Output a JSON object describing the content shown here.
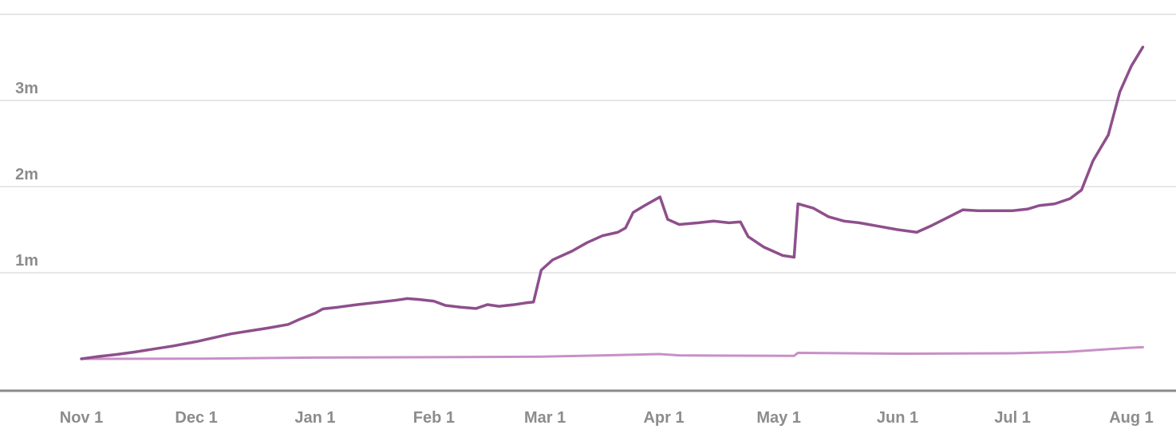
{
  "chart_data": {
    "type": "line",
    "title": "",
    "xlabel": "",
    "ylabel": "",
    "x_ticks": [
      "Nov 1",
      "Dec 1",
      "Jan 1",
      "Feb 1",
      "Mar 1",
      "Apr 1",
      "May 1",
      "Jun 1",
      "Jul 1",
      "Aug 1"
    ],
    "x_tick_values": [
      "2023-11-01",
      "2023-12-01",
      "2024-01-01",
      "2024-02-01",
      "2024-03-01",
      "2024-04-01",
      "2024-05-01",
      "2024-06-01",
      "2024-07-01",
      "2024-08-01"
    ],
    "y_ticks": [
      {
        "value": 1000000,
        "label": "1m"
      },
      {
        "value": 2000000,
        "label": "2m"
      },
      {
        "value": 3000000,
        "label": "3m"
      }
    ],
    "xlim": [
      "2023-11-01",
      "2024-08-01"
    ],
    "ylim": [
      0,
      4000000
    ],
    "grid": true,
    "legend": "none",
    "series": [
      {
        "color": "#8e4f8c",
        "stroke_role": "primary",
        "points": [
          [
            "2023-11-01",
            0
          ],
          [
            "2023-11-05",
            25000
          ],
          [
            "2023-11-10",
            50000
          ],
          [
            "2023-11-15",
            80000
          ],
          [
            "2023-11-20",
            115000
          ],
          [
            "2023-11-25",
            150000
          ],
          [
            "2023-12-01",
            200000
          ],
          [
            "2023-12-05",
            240000
          ],
          [
            "2023-12-10",
            290000
          ],
          [
            "2023-12-15",
            325000
          ],
          [
            "2023-12-20",
            360000
          ],
          [
            "2023-12-25",
            400000
          ],
          [
            "2023-12-28",
            460000
          ],
          [
            "2024-01-01",
            530000
          ],
          [
            "2024-01-03",
            580000
          ],
          [
            "2024-01-07",
            600000
          ],
          [
            "2024-01-12",
            630000
          ],
          [
            "2024-01-18",
            660000
          ],
          [
            "2024-01-22",
            680000
          ],
          [
            "2024-01-25",
            700000
          ],
          [
            "2024-01-28",
            690000
          ],
          [
            "2024-02-01",
            670000
          ],
          [
            "2024-02-04",
            620000
          ],
          [
            "2024-02-08",
            600000
          ],
          [
            "2024-02-12",
            585000
          ],
          [
            "2024-02-15",
            630000
          ],
          [
            "2024-02-18",
            610000
          ],
          [
            "2024-02-22",
            630000
          ],
          [
            "2024-02-25",
            650000
          ],
          [
            "2024-02-27",
            660000
          ],
          [
            "2024-02-29",
            1030000
          ],
          [
            "2024-03-03",
            1150000
          ],
          [
            "2024-03-08",
            1250000
          ],
          [
            "2024-03-12",
            1350000
          ],
          [
            "2024-03-16",
            1430000
          ],
          [
            "2024-03-20",
            1470000
          ],
          [
            "2024-03-22",
            1520000
          ],
          [
            "2024-03-24",
            1700000
          ],
          [
            "2024-03-27",
            1780000
          ],
          [
            "2024-03-31",
            1880000
          ],
          [
            "2024-04-02",
            1620000
          ],
          [
            "2024-04-05",
            1560000
          ],
          [
            "2024-04-10",
            1580000
          ],
          [
            "2024-04-14",
            1600000
          ],
          [
            "2024-04-18",
            1580000
          ],
          [
            "2024-04-21",
            1590000
          ],
          [
            "2024-04-23",
            1420000
          ],
          [
            "2024-04-27",
            1300000
          ],
          [
            "2024-05-02",
            1200000
          ],
          [
            "2024-05-05",
            1180000
          ],
          [
            "2024-05-06",
            1800000
          ],
          [
            "2024-05-10",
            1750000
          ],
          [
            "2024-05-14",
            1650000
          ],
          [
            "2024-05-18",
            1600000
          ],
          [
            "2024-05-22",
            1580000
          ],
          [
            "2024-05-27",
            1540000
          ],
          [
            "2024-06-01",
            1500000
          ],
          [
            "2024-06-06",
            1470000
          ],
          [
            "2024-06-10",
            1550000
          ],
          [
            "2024-06-14",
            1640000
          ],
          [
            "2024-06-18",
            1730000
          ],
          [
            "2024-06-22",
            1720000
          ],
          [
            "2024-06-26",
            1720000
          ],
          [
            "2024-07-01",
            1720000
          ],
          [
            "2024-07-05",
            1740000
          ],
          [
            "2024-07-08",
            1780000
          ],
          [
            "2024-07-12",
            1800000
          ],
          [
            "2024-07-16",
            1860000
          ],
          [
            "2024-07-19",
            1960000
          ],
          [
            "2024-07-22",
            2300000
          ],
          [
            "2024-07-26",
            2600000
          ],
          [
            "2024-07-29",
            3100000
          ],
          [
            "2024-08-01",
            3400000
          ],
          [
            "2024-08-04",
            3620000
          ]
        ]
      },
      {
        "color": "#c890c6",
        "stroke_role": "secondary",
        "points": [
          [
            "2023-11-01",
            0
          ],
          [
            "2023-12-01",
            2000
          ],
          [
            "2024-01-01",
            15000
          ],
          [
            "2024-02-01",
            20000
          ],
          [
            "2024-02-29",
            25000
          ],
          [
            "2024-03-05",
            30000
          ],
          [
            "2024-03-31",
            55000
          ],
          [
            "2024-04-05",
            40000
          ],
          [
            "2024-05-05",
            35000
          ],
          [
            "2024-05-06",
            70000
          ],
          [
            "2024-06-01",
            60000
          ],
          [
            "2024-07-01",
            65000
          ],
          [
            "2024-07-15",
            80000
          ],
          [
            "2024-08-01",
            130000
          ],
          [
            "2024-08-04",
            135000
          ]
        ]
      }
    ]
  }
}
